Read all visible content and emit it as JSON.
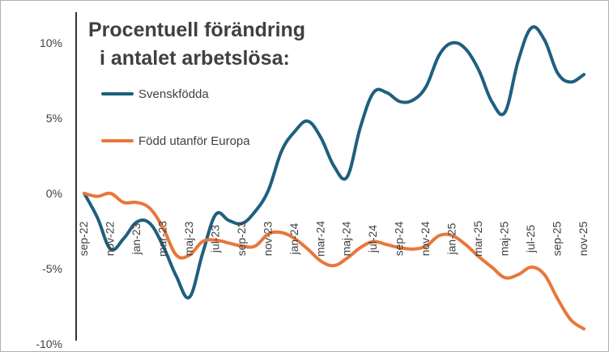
{
  "chart_data": {
    "type": "line",
    "title_lines": [
      "Procentuell förändring",
      "i antalet arbetslösa:"
    ],
    "ylim": [
      -10,
      12
    ],
    "y_ticks": [
      10,
      5,
      0,
      -5,
      -10
    ],
    "y_tick_labels": [
      "10%",
      "5%",
      "0%",
      "-5%",
      "-10%"
    ],
    "x": [
      "sep-22",
      "okt-22",
      "nov-22",
      "dec-22",
      "jan-23",
      "feb-23",
      "mar-23",
      "apr-23",
      "maj-23",
      "jun-23",
      "jul-23",
      "aug-23",
      "sep-23",
      "okt-23",
      "nov-23",
      "dec-23",
      "jan-24",
      "feb-24",
      "mar-24",
      "apr-24",
      "maj-24",
      "jun-24",
      "jul-24",
      "aug-24",
      "sep-24",
      "okt-24",
      "nov-24",
      "dec-24",
      "jan-25",
      "feb-25",
      "mar-25",
      "apr-25",
      "maj-25",
      "jun-25",
      "jul-25",
      "aug-25",
      "sep-25",
      "okt-25",
      "nov-25"
    ],
    "x_tick_labels": [
      "sep-22",
      "",
      "nov-22",
      "",
      "jan-23",
      "",
      "mar-23",
      "",
      "maj-23",
      "",
      "jul-23",
      "",
      "sep-23",
      "",
      "nov-23",
      "",
      "jan-24",
      "",
      "mar-24",
      "",
      "maj-24",
      "",
      "jul-24",
      "",
      "sep-24",
      "",
      "nov-24",
      "",
      "jan-25",
      "",
      "mar-25",
      "",
      "maj-25",
      "",
      "jul-25",
      "",
      "sep-25",
      "",
      "nov-25"
    ],
    "series": [
      {
        "name": "Svenskfödda",
        "color": "#1f5f7f",
        "values": [
          0,
          -1.6,
          -3.7,
          -3.0,
          -1.9,
          -2.0,
          -3.5,
          -5.5,
          -6.9,
          -4.0,
          -1.4,
          -1.8,
          -2.0,
          -1.2,
          0.2,
          2.8,
          4.1,
          4.8,
          3.7,
          1.8,
          1.1,
          4.4,
          6.7,
          6.7,
          6.1,
          6.2,
          7.1,
          9.2,
          10.0,
          9.6,
          8.2,
          6.1,
          5.4,
          8.8,
          11.0,
          10.2,
          8.0,
          7.4,
          7.9
        ]
      },
      {
        "name": "Född utanför Europa",
        "color": "#e8773a",
        "values": [
          0,
          -0.2,
          0,
          -0.6,
          -0.6,
          -1.0,
          -2.3,
          -4.1,
          -4.1,
          -3.2,
          -3.1,
          -3.3,
          -3.5,
          -3.5,
          -2.7,
          -2.6,
          -3.0,
          -3.7,
          -4.5,
          -4.8,
          -4.3,
          -3.6,
          -3.2,
          -3.4,
          -3.6,
          -3.7,
          -3.5,
          -2.8,
          -2.8,
          -3.4,
          -4.2,
          -4.9,
          -5.6,
          -5.4,
          -4.9,
          -5.4,
          -7.0,
          -8.4,
          -9.0
        ]
      }
    ],
    "legend": [
      "Svenskfödda",
      "Född utanför Europa"
    ]
  }
}
